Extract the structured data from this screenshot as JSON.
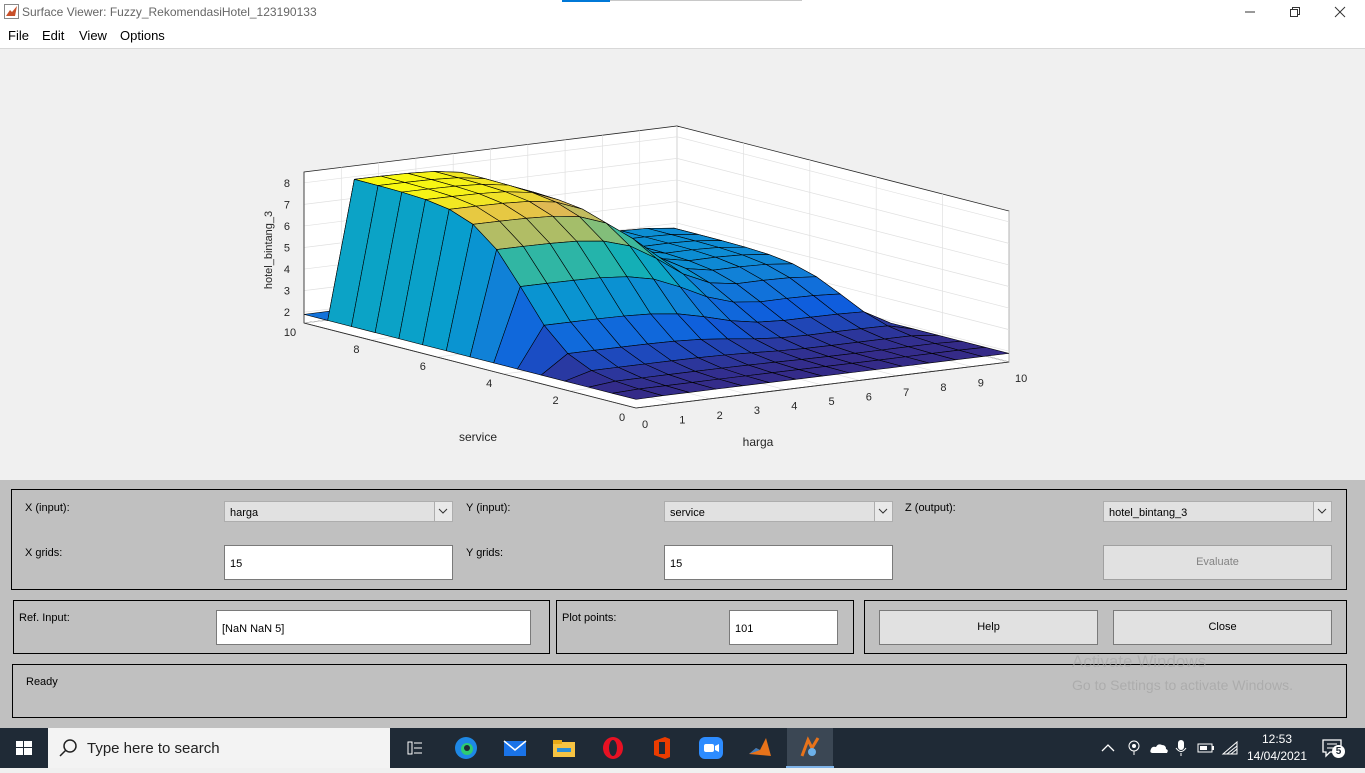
{
  "window": {
    "title": "Surface Viewer: Fuzzy_RekomendasiHotel_123190133",
    "controls": [
      "minimize",
      "restore",
      "close"
    ]
  },
  "menu": [
    "File",
    "Edit",
    "View",
    "Options"
  ],
  "chart_data": {
    "type": "surface",
    "xlabel": "harga",
    "ylabel": "service",
    "zlabel": "hotel_bintang_3",
    "x_ticks": [
      "0",
      "1",
      "2",
      "3",
      "4",
      "5",
      "6",
      "7",
      "8",
      "9",
      "10"
    ],
    "y_ticks": [
      "0",
      "2",
      "4",
      "6",
      "8",
      "10"
    ],
    "z_ticks": [
      "2",
      "3",
      "4",
      "5",
      "6",
      "7",
      "8"
    ],
    "xlim": [
      0,
      10
    ],
    "ylim": [
      0,
      10
    ],
    "zlim": [
      1.5,
      8.5
    ],
    "grids": 15,
    "colormap": "parula",
    "grid": true
  },
  "controls": {
    "x_input_label": "X (input):",
    "x_input_value": "harga",
    "y_input_label": "Y (input):",
    "y_input_value": "service",
    "z_output_label": "Z (output):",
    "z_output_value": "hotel_bintang_3",
    "x_grids_label": "X grids:",
    "x_grids_value": "15",
    "y_grids_label": "Y grids:",
    "y_grids_value": "15",
    "evaluate_label": "Evaluate",
    "ref_input_label": "Ref. Input:",
    "ref_input_value": "[NaN NaN 5]",
    "plot_points_label": "Plot points:",
    "plot_points_value": "101",
    "help_label": "Help",
    "close_label": "Close",
    "status": "Ready"
  },
  "watermark": {
    "line1": "Activate Windows",
    "line2": "Go to Settings to activate Windows."
  },
  "taskbar": {
    "search_placeholder": "Type here to search",
    "time": "12:53",
    "date": "14/04/2021",
    "notification_count": "5",
    "apps": [
      "task-view",
      "edge",
      "mail",
      "file-explorer",
      "opera",
      "office",
      "zoom",
      "matlab",
      "fuzzy-toolbox"
    ]
  }
}
